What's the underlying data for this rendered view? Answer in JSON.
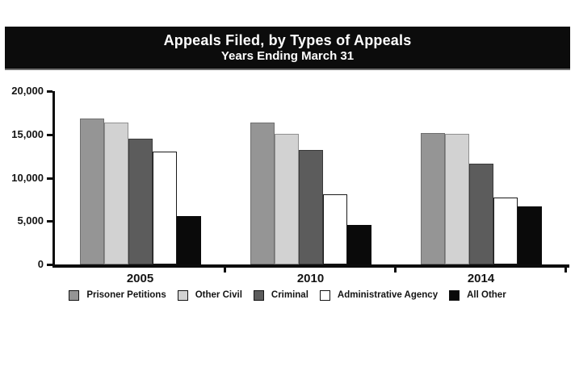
{
  "chart_data": {
    "type": "bar",
    "title": "Appeals Filed, by Types of Appeals",
    "subtitle": "Years Ending March 31",
    "categories": [
      "2005",
      "2010",
      "2014"
    ],
    "series": [
      {
        "name": "Prisoner Petitions",
        "color": "#959595",
        "border": "#6f6f6f",
        "border_px": 1,
        "values": [
          16800,
          16400,
          15200
        ]
      },
      {
        "name": "Other Civil",
        "color": "#d2d2d2",
        "border": "#8f8f8f",
        "border_px": 1,
        "values": [
          16400,
          15100,
          15100
        ]
      },
      {
        "name": "Criminal",
        "color": "#5c5c5c",
        "border": "#3a3a3a",
        "border_px": 1,
        "values": [
          14500,
          13200,
          11600
        ]
      },
      {
        "name": "Administrative Agency",
        "color": "#ffffff",
        "border": "#1a1a1a",
        "border_px": 1.5,
        "values": [
          13000,
          8100,
          7700
        ]
      },
      {
        "name": "All Other",
        "color": "#0a0a0a",
        "border": "#0a0a0a",
        "border_px": 1,
        "values": [
          5600,
          4600,
          6700
        ]
      }
    ],
    "ylim": [
      0,
      20000
    ],
    "y_ticks": [
      {
        "value": 0,
        "label": "0"
      },
      {
        "value": 5000,
        "label": "5,000"
      },
      {
        "value": 10000,
        "label": "10,000"
      },
      {
        "value": 15000,
        "label": "15,000"
      },
      {
        "value": 20000,
        "label": "20,000"
      }
    ],
    "xlabel": "",
    "ylabel": "",
    "grid": false,
    "legend_position": "bottom",
    "colors": {
      "axis": "#0c0c0c",
      "banner_bg": "#0c0c0c",
      "banner_text": "#ffffff",
      "page_bg": "#ffffff"
    }
  }
}
